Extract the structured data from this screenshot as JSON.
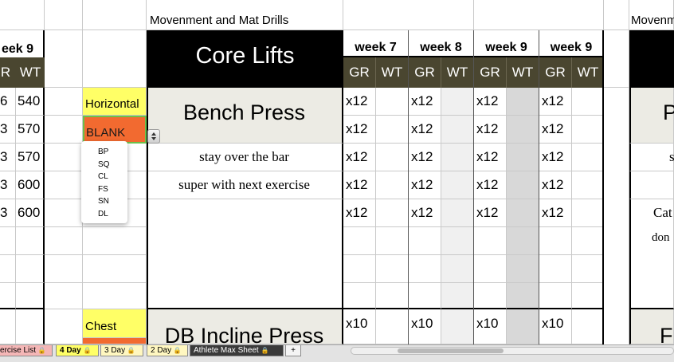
{
  "sheet": {
    "top_row_left": "Movenment and Mat Drills",
    "top_row_right": "Movenm",
    "core_lifts": "Core Lifts",
    "left_week": "eek 9",
    "left_gr": "R",
    "left_wt": "WT",
    "left_rows": [
      {
        "gr": "6",
        "wt": "540"
      },
      {
        "gr": "3",
        "wt": "570"
      },
      {
        "gr": "3",
        "wt": "570"
      },
      {
        "gr": "3",
        "wt": "600"
      },
      {
        "gr": "3",
        "wt": "600"
      }
    ],
    "weeks": [
      "week 7",
      "week 8",
      "week 9",
      "week 9"
    ],
    "gr_label": "GR",
    "wt_label": "WT",
    "category_1": "Horizontal",
    "category_select": "BLANK",
    "dropdown_options": [
      "BP",
      "SQ",
      "CL",
      "FS",
      "SN",
      "DL"
    ],
    "exercise_1": "Bench Press",
    "note_1": "stay over the bar",
    "note_2": "super with next exercise",
    "reps_1": "x12",
    "category_2": "Chest",
    "exercise_2": "DB Incline Press",
    "reps_2": "x10",
    "right_exercise_1": "P",
    "right_note_1": "s",
    "right_note_2": "Cat",
    "right_note_3": "don",
    "right_exercise_2": "F"
  },
  "tabs": [
    {
      "label": "ercise List",
      "color": "#f4b6b6"
    },
    {
      "label": "4 Day",
      "color": "#ffff66"
    },
    {
      "label": "3 Day",
      "color": "#fff7c0"
    },
    {
      "label": "2 Day",
      "color": "#fff7c0"
    },
    {
      "label": "Athlete Max Sheet",
      "color": "#3a3a3a"
    }
  ],
  "add_sheet": "+"
}
